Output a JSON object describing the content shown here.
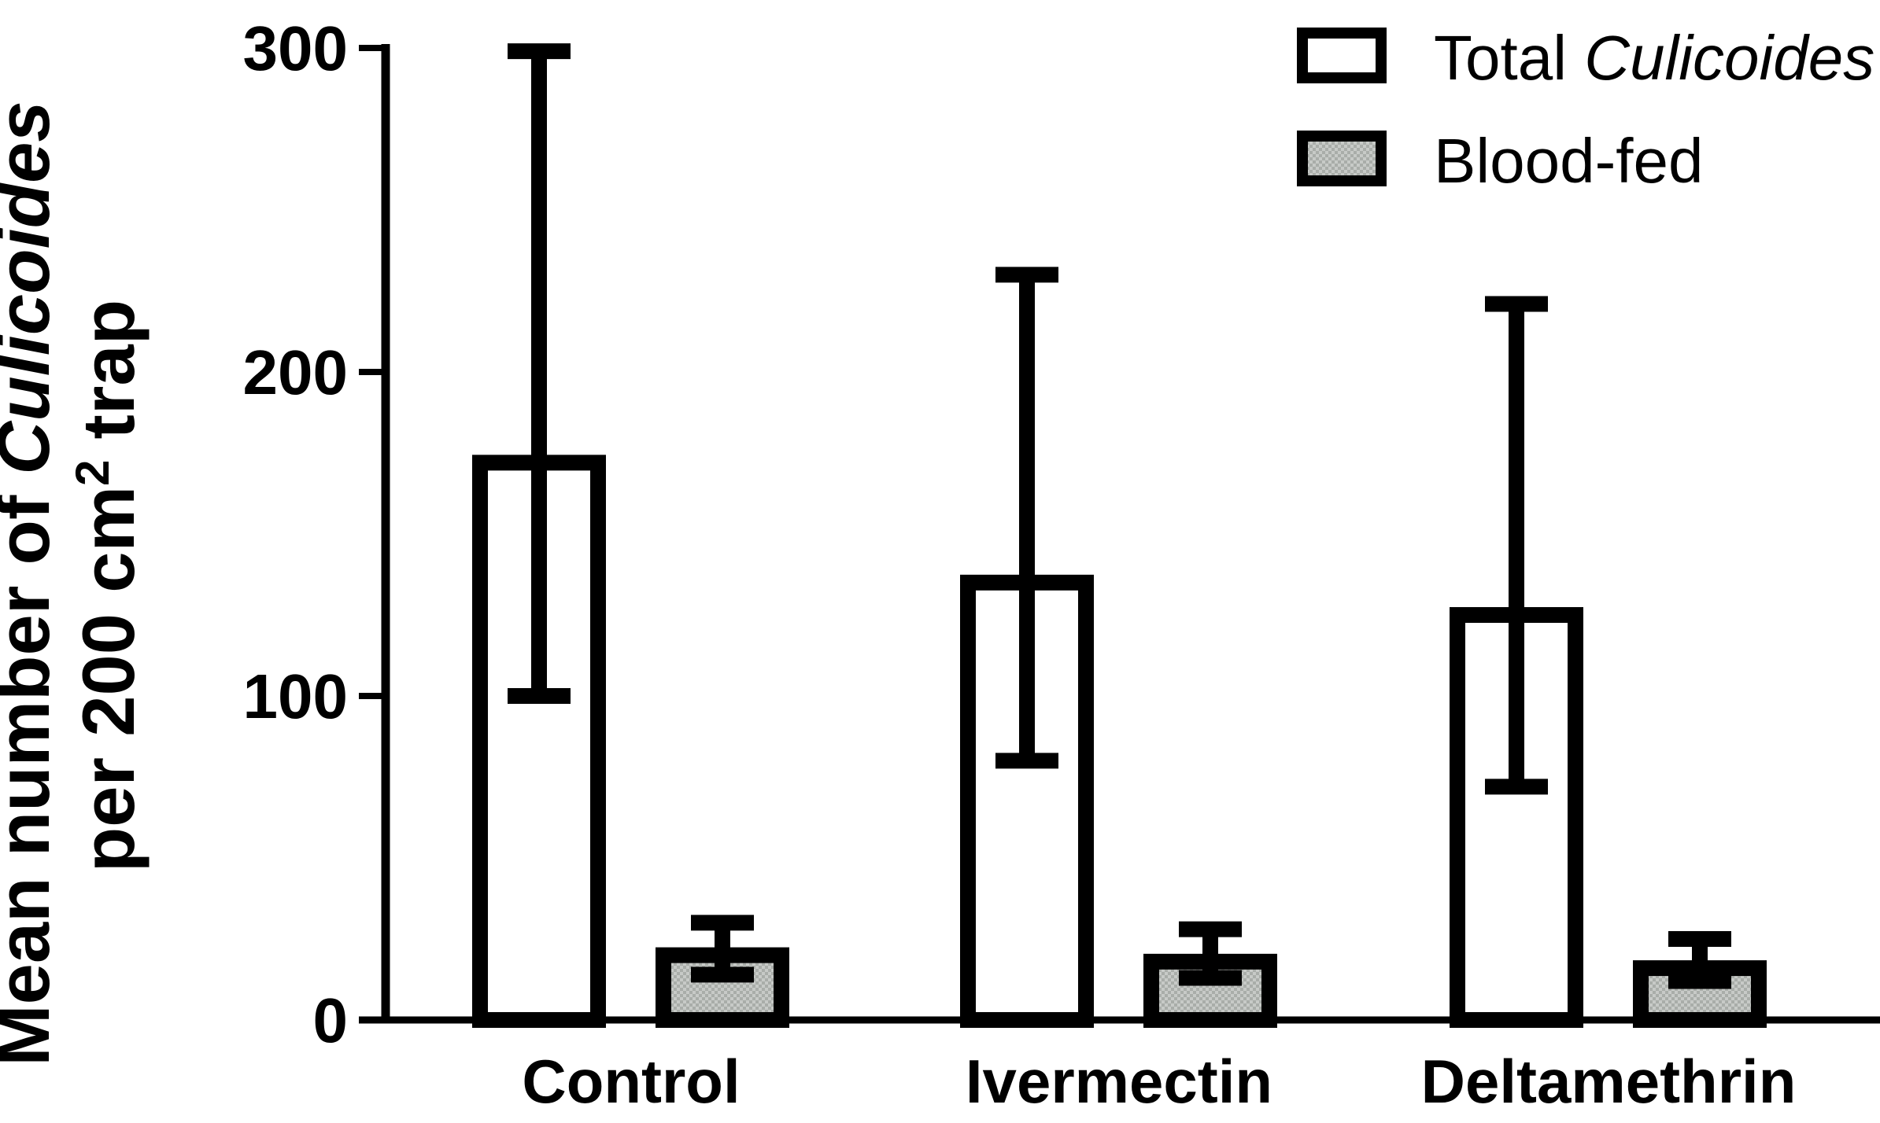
{
  "figure": {
    "background": "#ffffff",
    "ink_color": "#000000"
  },
  "y_axis": {
    "title_line1_regular": "Mean number of ",
    "title_line1_italic": "Culicoides",
    "title_line2_pre": "per 200 cm",
    "title_line2_sup": "2",
    "title_line2_post": " trap",
    "ticks": [
      0,
      100,
      200,
      300
    ],
    "range": [
      0,
      300
    ]
  },
  "x_axis": {
    "categories": [
      "Control",
      "Ivermectin",
      "Deltamethrin"
    ]
  },
  "legend": [
    {
      "label_regular": "Total ",
      "label_italic": "Culicoides",
      "fill": "#ffffff"
    },
    {
      "label_regular": "Blood-fed",
      "label_italic": "",
      "fill": "#c7cac7",
      "fill_dot": "#a9ada9"
    }
  ],
  "chart_data": {
    "type": "bar",
    "title": "",
    "xlabel": "",
    "ylabel": "Mean number of Culicoides per 200 cm2 trap",
    "ylim": [
      0,
      300
    ],
    "grid": false,
    "legend_position": "top-right",
    "error_bars": true,
    "categories": [
      "Control",
      "Ivermectin",
      "Deltamethrin"
    ],
    "series": [
      {
        "name": "Total Culicoides",
        "fill": "#ffffff",
        "texture": "solid",
        "values": [
          172,
          135,
          125
        ],
        "error_low": [
          100,
          80,
          72
        ],
        "error_high": [
          299,
          230,
          221
        ]
      },
      {
        "name": "Blood-fed",
        "fill": "#c7cac7",
        "fill_dot": "#a9ada9",
        "texture": "checker",
        "values": [
          20,
          18,
          16
        ],
        "error_low": [
          14,
          13,
          12
        ],
        "error_high": [
          30,
          28,
          25
        ]
      }
    ]
  }
}
